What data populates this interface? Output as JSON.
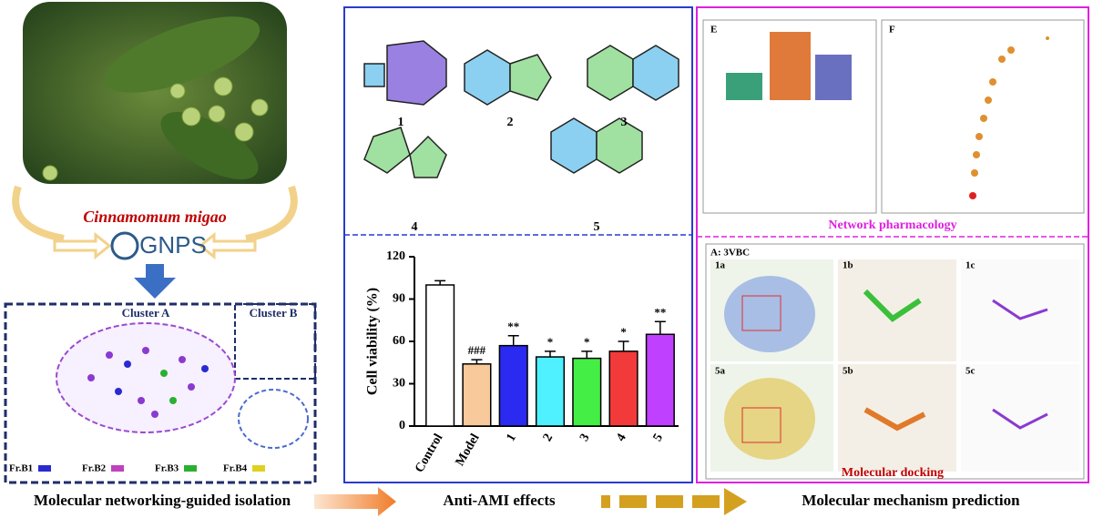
{
  "header": {
    "species": "Cinnamomum migao",
    "gnps": "GNPS"
  },
  "network": {
    "cluster_a": "Cluster A",
    "cluster_b": "Cluster B",
    "fractions": [
      "Fr.B1",
      "Fr.B2",
      "Fr.B3",
      "Fr.B4"
    ]
  },
  "structures": [
    "1",
    "2",
    "3",
    "4",
    "5"
  ],
  "chart_data": {
    "type": "bar",
    "ylabel": "Cell viability (%)",
    "categories": [
      "Control",
      "Model",
      "1",
      "2",
      "3",
      "4",
      "5"
    ],
    "values": [
      100,
      44,
      57,
      49,
      48,
      53,
      65
    ],
    "errors": [
      3,
      3,
      7,
      4,
      5,
      7,
      9
    ],
    "annotations": [
      null,
      "###",
      "**",
      "*",
      "*",
      "*",
      "**"
    ],
    "colors": [
      "#ffffff",
      "#f8c99a",
      "#2a2af0",
      "#4ff0ff",
      "#44ee44",
      "#f23a3a",
      "#c040ff"
    ],
    "ylim": [
      0,
      120
    ],
    "yticks": [
      0,
      30,
      60,
      90,
      120
    ]
  },
  "pharmacology": {
    "panel_e": "E",
    "panel_f": "F",
    "title": "Network pharmacology"
  },
  "docking": {
    "target": "A: 3VBC",
    "panels": [
      "1a",
      "1b",
      "1c",
      "5a",
      "5b",
      "5c"
    ],
    "title": "Molecular docking"
  },
  "footer": {
    "steps": [
      "Molecular networking-guided isolation",
      "Anti-AMI effects",
      "Molecular mechanism prediction"
    ]
  }
}
